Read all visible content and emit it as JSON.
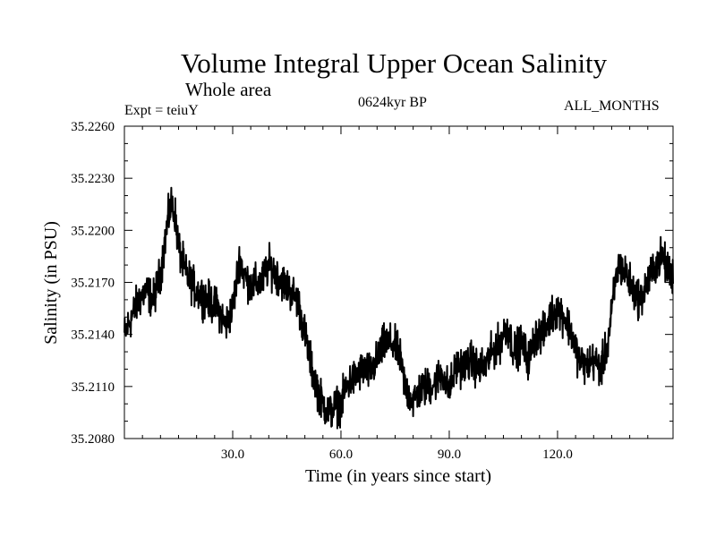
{
  "chart_data": {
    "type": "line",
    "title": "Volume Integral Upper Ocean Salinity",
    "subtitle": "Whole area",
    "experiment_label": "Expt = teiuY",
    "period_label": "0624kyr BP",
    "months_label": "ALL_MONTHS",
    "xlabel": "Time (in years since start)",
    "ylabel": "Salinity (in PSU)",
    "xlim": [
      0,
      152
    ],
    "ylim": [
      35.208,
      35.226
    ],
    "x_ticks": [
      30,
      60,
      90,
      120
    ],
    "x_tick_labels": [
      "30.0",
      "60.0",
      "90.0",
      "120.0"
    ],
    "y_ticks": [
      35.208,
      35.211,
      35.214,
      35.217,
      35.22,
      35.223,
      35.226
    ],
    "y_tick_labels": [
      "35.2080",
      "35.2110",
      "35.2140",
      "35.2170",
      "35.2200",
      "35.2230",
      "35.2260"
    ],
    "series": [
      {
        "name": "Salinity",
        "color": "#000000",
        "noise_amplitude": 0.0009,
        "x": [
          0,
          2,
          4,
          6,
          8,
          10,
          12,
          13,
          14,
          15,
          17,
          20,
          23,
          26,
          28,
          30,
          32,
          33,
          35,
          38,
          40,
          42,
          44,
          46,
          48,
          50,
          52,
          54,
          55,
          57,
          58,
          60,
          62,
          64,
          66,
          68,
          70,
          72,
          74,
          76,
          78,
          80,
          82,
          84,
          86,
          88,
          90,
          92,
          94,
          96,
          98,
          100,
          102,
          104,
          106,
          108,
          110,
          112,
          114,
          116,
          118,
          120,
          122,
          124,
          126,
          128,
          130,
          132,
          134,
          136,
          137,
          139,
          141,
          143,
          145,
          147,
          149,
          151,
          152
        ],
        "y": [
          35.214,
          35.215,
          35.216,
          35.2165,
          35.216,
          35.2175,
          35.2205,
          35.2215,
          35.221,
          35.219,
          35.2175,
          35.2165,
          35.216,
          35.2155,
          35.2145,
          35.2155,
          35.2185,
          35.2175,
          35.2168,
          35.217,
          35.218,
          35.2175,
          35.217,
          35.2165,
          35.216,
          35.214,
          35.212,
          35.2105,
          35.21,
          35.2095,
          35.2098,
          35.21,
          35.2112,
          35.2115,
          35.212,
          35.2118,
          35.2125,
          35.2135,
          35.2135,
          35.213,
          35.2108,
          35.2102,
          35.2108,
          35.211,
          35.2112,
          35.2118,
          35.2108,
          35.2122,
          35.2122,
          35.2125,
          35.212,
          35.2122,
          35.213,
          35.2135,
          35.2145,
          35.213,
          35.2135,
          35.2125,
          35.214,
          35.214,
          35.215,
          35.2155,
          35.215,
          35.214,
          35.2125,
          35.2122,
          35.2125,
          35.212,
          35.2135,
          35.217,
          35.218,
          35.2175,
          35.2165,
          35.216,
          35.217,
          35.218,
          35.2185,
          35.2175,
          35.2175
        ]
      }
    ]
  }
}
